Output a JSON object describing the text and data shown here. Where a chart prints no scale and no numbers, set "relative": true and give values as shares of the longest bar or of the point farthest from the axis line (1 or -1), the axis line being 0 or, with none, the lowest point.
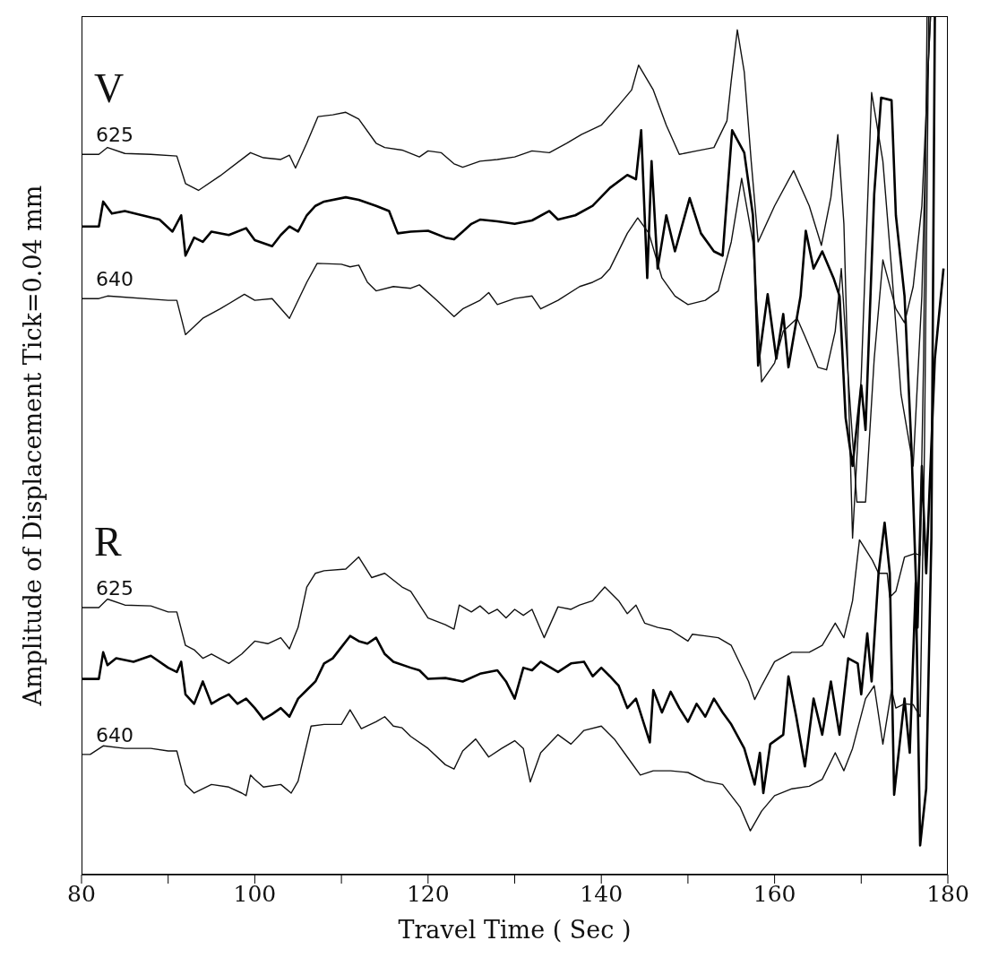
{
  "chart_data": {
    "type": "line",
    "xlabel": "Travel Time ( Sec )",
    "ylabel": "Amplitude of Displacement Tick=0.04 mm",
    "relative": true,
    "xlim": [
      80,
      180
    ],
    "xticks": [
      80,
      {
        "value": 90,
        "label": null
      },
      100,
      {
        "value": 110,
        "label": null
      },
      120,
      {
        "value": 130,
        "label": null
      },
      140,
      {
        "value": 150,
        "label": null
      },
      160,
      {
        "value": 170,
        "label": null
      },
      180
    ],
    "annotations": [
      "V",
      "R"
    ],
    "marker": "none",
    "series": [
      {
        "name": "625",
        "color": "#111111",
        "x": [
          80,
          82,
          83,
          85,
          88,
          91,
          92,
          93.5,
          96,
          99.5,
          101,
          103,
          104,
          104.7,
          106,
          107.3,
          109,
          110.5,
          112,
          114,
          115,
          117,
          119,
          120,
          121.5,
          123,
          124,
          126,
          128,
          130,
          132,
          134,
          136,
          137.7,
          140,
          142,
          143.5,
          144.3,
          146,
          147.5,
          149,
          151,
          153,
          154.5,
          155,
          155.7,
          156.5,
          157.3,
          158.1,
          160,
          162.2,
          164,
          165.4,
          166.5,
          167.3,
          168,
          169,
          170,
          171.2,
          172.5,
          173.5,
          174.6,
          176,
          177,
          177.6,
          178
        ],
        "values": [
          0.839,
          0.839,
          0.847,
          0.84,
          0.839,
          0.837,
          0.805,
          0.797,
          0.814,
          0.841,
          0.835,
          0.833,
          0.838,
          0.823,
          0.852,
          0.883,
          0.885,
          0.888,
          0.88,
          0.852,
          0.847,
          0.844,
          0.836,
          0.843,
          0.841,
          0.828,
          0.824,
          0.831,
          0.833,
          0.836,
          0.843,
          0.841,
          0.852,
          0.862,
          0.873,
          0.896,
          0.914,
          0.943,
          0.914,
          0.873,
          0.839,
          0.843,
          0.847,
          0.878,
          0.925,
          0.984,
          0.935,
          0.831,
          0.737,
          0.779,
          0.82,
          0.779,
          0.733,
          0.789,
          0.862,
          0.758,
          0.392,
          0.58,
          0.911,
          0.831,
          0.706,
          0.559,
          0.476,
          0.674,
          0.914,
          1
        ]
      },
      {
        "color": "#000000",
        "x": [
          80,
          82,
          82.5,
          83.5,
          85,
          87,
          89,
          90.5,
          91.5,
          92,
          93,
          94,
          95,
          97,
          99,
          100,
          102,
          103,
          104,
          105,
          106,
          107,
          108,
          110.5,
          112,
          114,
          115.5,
          116.5,
          118,
          120,
          122,
          123,
          124,
          125,
          126,
          128,
          130,
          132,
          134,
          135,
          137,
          139,
          141,
          143,
          144,
          144.6,
          145.3,
          145.8,
          146.5,
          147.5,
          148.5,
          150.2,
          151.5,
          153,
          154,
          155.1,
          156.5,
          157.5,
          158.1,
          159.2,
          160.2,
          161,
          161.6,
          163,
          163.6,
          164.5,
          165.5,
          166.8,
          167.5,
          168.2,
          169,
          170,
          170.5,
          171.5,
          172.3,
          173.5,
          174,
          175,
          175.8,
          176.5,
          177,
          177.5,
          178.5,
          179.5
        ],
        "values": [
          0.755,
          0.755,
          0.784,
          0.77,
          0.773,
          0.768,
          0.763,
          0.749,
          0.768,
          0.721,
          0.742,
          0.737,
          0.749,
          0.745,
          0.753,
          0.739,
          0.732,
          0.745,
          0.755,
          0.749,
          0.768,
          0.779,
          0.784,
          0.789,
          0.786,
          0.779,
          0.773,
          0.747,
          0.749,
          0.75,
          0.742,
          0.74,
          0.749,
          0.758,
          0.763,
          0.761,
          0.758,
          0.762,
          0.773,
          0.763,
          0.768,
          0.779,
          0.8,
          0.815,
          0.81,
          0.867,
          0.695,
          0.831,
          0.706,
          0.768,
          0.726,
          0.788,
          0.747,
          0.726,
          0.721,
          0.867,
          0.841,
          0.768,
          0.593,
          0.676,
          0.601,
          0.653,
          0.591,
          0.674,
          0.75,
          0.706,
          0.726,
          0.695,
          0.674,
          0.532,
          0.476,
          0.57,
          0.518,
          0.793,
          0.905,
          0.902,
          0.768,
          0.674,
          0.497,
          0.288,
          0.476,
          0.351,
          0.601,
          0.706
        ]
      },
      {
        "name": "640",
        "color": "#111111",
        "x": [
          80,
          82,
          83,
          90,
          91,
          92,
          94,
          96,
          98.8,
          100,
          102,
          104,
          106,
          107.2,
          110,
          111,
          112,
          113,
          114,
          116,
          118,
          119,
          121,
          123,
          124,
          126,
          127,
          128,
          130,
          132,
          133,
          135,
          137.5,
          139,
          140,
          141,
          143,
          144.2,
          145.5,
          147,
          148.5,
          150,
          152,
          153.5,
          155,
          156.2,
          157.5,
          158.5,
          160,
          161,
          162.6,
          163.5,
          165,
          166,
          167,
          167.7,
          168.5,
          169.5,
          170.5,
          171.5,
          172.5,
          174,
          175,
          176,
          177,
          178
        ],
        "values": [
          0.671,
          0.671,
          0.674,
          0.669,
          0.669,
          0.629,
          0.648,
          0.659,
          0.676,
          0.669,
          0.671,
          0.648,
          0.69,
          0.712,
          0.711,
          0.708,
          0.71,
          0.69,
          0.68,
          0.685,
          0.683,
          0.687,
          0.669,
          0.65,
          0.659,
          0.669,
          0.678,
          0.664,
          0.671,
          0.674,
          0.659,
          0.669,
          0.685,
          0.69,
          0.695,
          0.706,
          0.747,
          0.765,
          0.747,
          0.695,
          0.674,
          0.664,
          0.669,
          0.68,
          0.737,
          0.811,
          0.737,
          0.574,
          0.596,
          0.633,
          0.648,
          0.627,
          0.591,
          0.588,
          0.633,
          0.706,
          0.58,
          0.434,
          0.434,
          0.601,
          0.716,
          0.659,
          0.643,
          0.685,
          0.779,
          1
        ]
      },
      {
        "name": "625",
        "color": "#111111",
        "x": [
          80,
          82,
          83,
          85,
          88,
          90,
          91,
          92,
          93,
          94,
          95,
          97,
          98.5,
          100,
          101.5,
          103,
          104,
          105,
          106,
          107,
          108,
          110.5,
          112,
          113.5,
          115,
          117,
          118,
          120,
          122,
          123,
          123.6,
          125,
          126,
          127,
          128,
          129,
          130,
          131,
          132,
          133.4,
          135,
          136.5,
          137.5,
          139,
          140.4,
          142,
          143,
          144,
          145,
          146.5,
          148,
          150,
          150.5,
          152,
          153.5,
          155,
          157,
          157.7,
          158.5,
          160,
          162,
          164,
          165.5,
          167,
          168,
          169,
          169.8,
          171.3,
          172,
          173,
          173.3,
          174,
          175,
          176.2,
          176.8,
          177.2,
          177.6
        ],
        "values": [
          0.311,
          0.311,
          0.321,
          0.314,
          0.313,
          0.306,
          0.306,
          0.267,
          0.262,
          0.252,
          0.257,
          0.246,
          0.257,
          0.272,
          0.269,
          0.276,
          0.263,
          0.288,
          0.335,
          0.351,
          0.354,
          0.356,
          0.37,
          0.346,
          0.351,
          0.335,
          0.33,
          0.299,
          0.291,
          0.286,
          0.314,
          0.306,
          0.313,
          0.304,
          0.309,
          0.299,
          0.309,
          0.302,
          0.309,
          0.276,
          0.312,
          0.309,
          0.314,
          0.319,
          0.335,
          0.319,
          0.304,
          0.314,
          0.293,
          0.288,
          0.285,
          0.272,
          0.28,
          0.278,
          0.276,
          0.267,
          0.225,
          0.204,
          0.22,
          0.248,
          0.259,
          0.259,
          0.267,
          0.293,
          0.276,
          0.319,
          0.39,
          0.366,
          0.351,
          0.351,
          0.323,
          0.33,
          0.37,
          0.374,
          0.372,
          0.601,
          1
        ]
      },
      {
        "color": "#000000",
        "x": [
          80,
          82,
          82.5,
          83,
          84,
          86,
          88,
          90,
          91,
          91.5,
          92,
          93,
          94,
          95,
          96,
          97,
          98,
          99,
          100,
          101,
          102,
          103,
          104,
          105,
          106,
          107,
          108,
          109,
          110,
          111,
          112,
          113,
          114,
          115,
          116,
          118,
          119,
          120,
          122,
          124,
          126,
          128,
          129,
          130,
          131,
          132,
          133,
          135,
          136.5,
          138,
          139,
          140,
          141,
          142,
          143,
          144,
          145.6,
          146,
          147,
          148,
          149,
          150,
          151,
          152,
          153,
          154,
          155,
          156.5,
          157.7,
          158.3,
          158.7,
          159.5,
          161,
          161.6,
          162.5,
          163.5,
          164.5,
          165.5,
          166.5,
          167.5,
          168.5,
          169.6,
          170,
          170.7,
          171.2,
          172,
          172.7,
          173.3,
          173.8,
          175,
          175.6,
          176.3,
          176.8,
          177.5,
          178.1,
          178.5
        ],
        "values": [
          0.228,
          0.228,
          0.259,
          0.244,
          0.252,
          0.248,
          0.255,
          0.241,
          0.236,
          0.248,
          0.21,
          0.199,
          0.225,
          0.199,
          0.205,
          0.21,
          0.199,
          0.205,
          0.194,
          0.181,
          0.187,
          0.194,
          0.184,
          0.205,
          0.215,
          0.225,
          0.246,
          0.252,
          0.265,
          0.278,
          0.272,
          0.269,
          0.276,
          0.257,
          0.248,
          0.241,
          0.238,
          0.228,
          0.229,
          0.225,
          0.234,
          0.238,
          0.225,
          0.205,
          0.241,
          0.238,
          0.248,
          0.236,
          0.246,
          0.248,
          0.231,
          0.241,
          0.231,
          0.22,
          0.194,
          0.205,
          0.154,
          0.215,
          0.189,
          0.213,
          0.194,
          0.178,
          0.199,
          0.184,
          0.205,
          0.189,
          0.175,
          0.147,
          0.105,
          0.142,
          0.095,
          0.152,
          0.163,
          0.231,
          0.184,
          0.126,
          0.205,
          0.163,
          0.225,
          0.163,
          0.252,
          0.246,
          0.21,
          0.281,
          0.225,
          0.351,
          0.41,
          0.351,
          0.093,
          0.205,
          0.142,
          0.34,
          0.034,
          0.1,
          0.392,
          1
        ]
      },
      {
        "name": "640",
        "color": "#111111",
        "x": [
          80,
          81,
          82.5,
          85,
          88,
          90,
          91,
          92,
          93,
          95,
          97,
          98.5,
          99,
          99.5,
          100,
          101,
          103,
          104.2,
          105,
          106.5,
          108,
          110,
          111,
          112.3,
          114,
          115,
          116,
          117,
          118,
          120,
          122,
          123,
          124,
          125.5,
          127,
          128.5,
          130,
          131,
          131.8,
          133,
          135,
          136.5,
          138,
          140,
          141.5,
          143,
          144.5,
          146,
          148,
          150,
          152,
          154,
          156,
          157.2,
          158.5,
          160,
          162,
          164,
          165.5,
          167,
          168,
          169,
          170.5,
          171.5,
          172.5,
          173.5,
          174,
          175,
          176,
          176.8,
          177.3,
          177.8
        ],
        "values": [
          0.14,
          0.14,
          0.15,
          0.147,
          0.147,
          0.144,
          0.144,
          0.105,
          0.095,
          0.105,
          0.102,
          0.095,
          0.092,
          0.116,
          0.111,
          0.102,
          0.105,
          0.095,
          0.109,
          0.173,
          0.175,
          0.175,
          0.192,
          0.17,
          0.178,
          0.184,
          0.173,
          0.171,
          0.161,
          0.147,
          0.128,
          0.123,
          0.144,
          0.158,
          0.137,
          0.147,
          0.156,
          0.147,
          0.108,
          0.142,
          0.163,
          0.152,
          0.168,
          0.173,
          0.158,
          0.137,
          0.116,
          0.121,
          0.121,
          0.119,
          0.109,
          0.105,
          0.079,
          0.051,
          0.074,
          0.092,
          0.1,
          0.103,
          0.111,
          0.142,
          0.121,
          0.147,
          0.205,
          0.22,
          0.152,
          0.215,
          0.194,
          0.199,
          0.198,
          0.184,
          0.497,
          1
        ]
      }
    ]
  }
}
